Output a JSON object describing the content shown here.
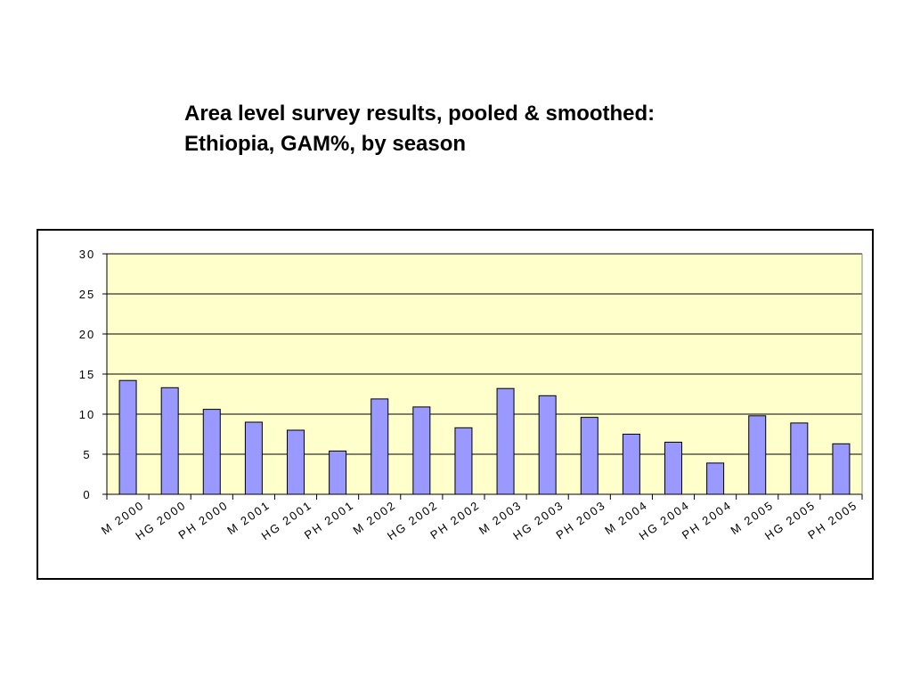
{
  "title": {
    "line1": "Area level survey results, pooled & smoothed:",
    "line2": "Ethiopia, GAM%, by season"
  },
  "chart_data": {
    "type": "bar",
    "title": "Area level survey results, pooled & smoothed: Ethiopia, GAM%, by season",
    "categories": [
      "M 2000",
      "HG 2000",
      "PH 2000",
      "M 2001",
      "HG 2001",
      "PH 2001",
      "M 2002",
      "HG 2002",
      "PH 2002",
      "M 2003",
      "HG 2003",
      "PH 2003",
      "M 2004",
      "HG 2004",
      "PH 2004",
      "M 2005",
      "HG 2005",
      "PH 2005"
    ],
    "values": [
      14.2,
      13.3,
      10.6,
      9.0,
      8.0,
      5.4,
      11.9,
      10.9,
      8.3,
      13.2,
      12.3,
      9.6,
      7.5,
      6.5,
      3.9,
      9.8,
      8.9,
      6.3
    ],
    "yticks": [
      "0",
      "5",
      "10",
      "15",
      "20",
      "25",
      "30"
    ],
    "ylim": [
      0,
      30
    ],
    "xlabel": "",
    "ylabel": "",
    "grid": true,
    "colors": {
      "plot_background": "#ffffcc",
      "bar_fill": "#9999ff",
      "bar_stroke": "#000000",
      "grid": "#000000"
    }
  }
}
